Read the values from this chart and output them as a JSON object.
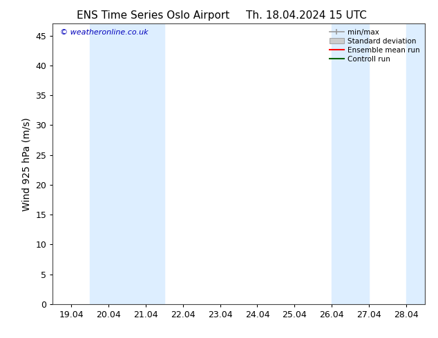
{
  "title_left": "ENS Time Series Oslo Airport",
  "title_right": "Th. 18.04.2024 15 UTC",
  "ylabel": "Wind 925 hPa (m/s)",
  "watermark": "© weatheronline.co.uk",
  "ylim": [
    0,
    47
  ],
  "yticks": [
    0,
    5,
    10,
    15,
    20,
    25,
    30,
    35,
    40,
    45
  ],
  "xtick_labels": [
    "19.04",
    "20.04",
    "21.04",
    "22.04",
    "23.04",
    "24.04",
    "25.04",
    "26.04",
    "27.04",
    "28.04"
  ],
  "xtick_positions": [
    0,
    1,
    2,
    3,
    4,
    5,
    6,
    7,
    8,
    9
  ],
  "xlim": [
    -0.5,
    9.5
  ],
  "shaded_bands": [
    [
      0.5,
      1.5
    ],
    [
      1.5,
      2.5
    ],
    [
      7.0,
      7.5
    ],
    [
      7.5,
      8.0
    ],
    [
      9.0,
      9.5
    ]
  ],
  "shade_color": "#ddeeff",
  "background_color": "#ffffff",
  "legend_items": [
    {
      "label": "min/max",
      "color": "#999999",
      "style": "minmax"
    },
    {
      "label": "Standard deviation",
      "color": "#cccccc",
      "style": "stddev"
    },
    {
      "label": "Ensemble mean run",
      "color": "#ff0000",
      "style": "line"
    },
    {
      "label": "Controll run",
      "color": "#006400",
      "style": "line"
    }
  ],
  "title_fontsize": 11,
  "axis_fontsize": 10,
  "tick_fontsize": 9,
  "watermark_color": "#0000bb",
  "watermark_fontsize": 8
}
